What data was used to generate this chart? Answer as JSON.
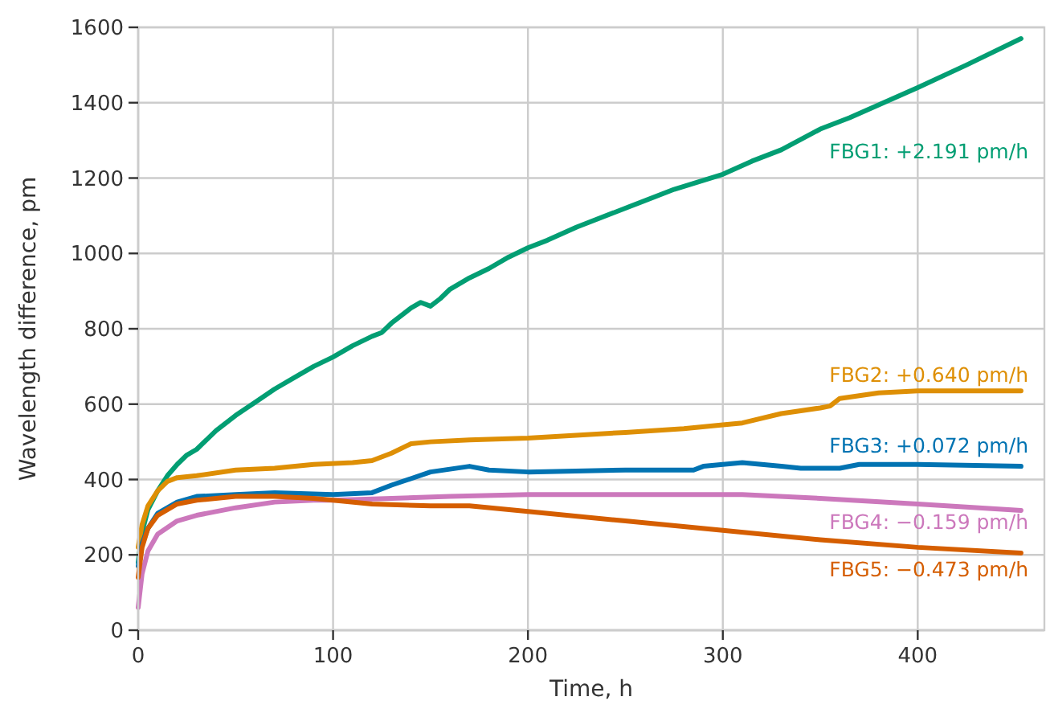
{
  "chart_data": {
    "type": "line",
    "xlabel": "Time, h",
    "ylabel": "Wavelength difference, pm",
    "xlim": [
      0,
      465
    ],
    "ylim": [
      0,
      1600
    ],
    "xticks": [
      0,
      100,
      200,
      300,
      400
    ],
    "yticks": [
      0,
      200,
      400,
      600,
      800,
      1000,
      1200,
      1400,
      1600
    ],
    "grid": true,
    "line_style": "solid",
    "marker": "none",
    "series": [
      {
        "name": "FBG1: +2.191 pm/h",
        "color": "#029e73",
        "x": [
          0,
          2,
          5,
          10,
          15,
          20,
          25,
          30,
          40,
          50,
          60,
          70,
          80,
          90,
          100,
          110,
          120,
          125,
          130,
          140,
          145,
          150,
          155,
          160,
          170,
          180,
          190,
          200,
          210,
          225,
          250,
          275,
          300,
          315,
          330,
          350,
          365,
          400,
          425,
          453
        ],
        "values": [
          180,
          260,
          320,
          370,
          410,
          440,
          465,
          480,
          530,
          570,
          605,
          640,
          670,
          700,
          725,
          755,
          780,
          790,
          815,
          855,
          870,
          860,
          880,
          905,
          935,
          960,
          990,
          1015,
          1035,
          1070,
          1120,
          1170,
          1210,
          1245,
          1275,
          1330,
          1360,
          1440,
          1500,
          1570
        ]
      },
      {
        "name": "FBG2: +0.640 pm/h",
        "color": "#de8f05",
        "x": [
          0,
          2,
          5,
          10,
          15,
          20,
          30,
          50,
          70,
          90,
          110,
          120,
          130,
          140,
          150,
          170,
          200,
          250,
          280,
          300,
          310,
          330,
          350,
          355,
          360,
          380,
          400,
          453
        ],
        "values": [
          220,
          280,
          330,
          370,
          395,
          405,
          410,
          425,
          430,
          440,
          445,
          450,
          470,
          495,
          500,
          505,
          510,
          525,
          535,
          545,
          550,
          575,
          590,
          595,
          615,
          630,
          635,
          635
        ]
      },
      {
        "name": "FBG3: +0.072 pm/h",
        "color": "#0173b2",
        "x": [
          0,
          2,
          5,
          10,
          20,
          30,
          50,
          70,
          100,
          120,
          130,
          150,
          170,
          180,
          200,
          250,
          285,
          290,
          310,
          330,
          340,
          360,
          370,
          400,
          453
        ],
        "values": [
          170,
          230,
          270,
          310,
          340,
          355,
          360,
          365,
          360,
          365,
          385,
          420,
          435,
          425,
          420,
          425,
          425,
          435,
          445,
          435,
          430,
          430,
          440,
          440,
          435
        ]
      },
      {
        "name": "FBG4: −0.159 pm/h",
        "color": "#cc78bc",
        "x": [
          0,
          2,
          5,
          10,
          20,
          30,
          50,
          70,
          90,
          100,
          130,
          160,
          200,
          250,
          300,
          310,
          350,
          400,
          453
        ],
        "values": [
          60,
          150,
          210,
          255,
          290,
          305,
          325,
          340,
          345,
          345,
          350,
          355,
          360,
          360,
          360,
          360,
          350,
          335,
          318
        ]
      },
      {
        "name": "FBG5: −0.473 pm/h",
        "color": "#d55e00",
        "x": [
          0,
          2,
          5,
          10,
          20,
          30,
          50,
          70,
          90,
          100,
          120,
          150,
          170,
          200,
          250,
          300,
          350,
          400,
          453
        ],
        "values": [
          140,
          220,
          270,
          305,
          335,
          345,
          355,
          355,
          350,
          345,
          335,
          330,
          330,
          315,
          290,
          265,
          240,
          220,
          205
        ]
      }
    ]
  }
}
